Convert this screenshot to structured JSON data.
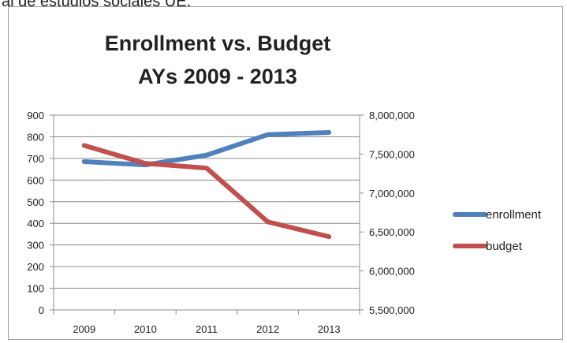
{
  "header": {
    "cutoff_caption": "al de estudios sociales UE."
  },
  "chart_data": {
    "type": "line",
    "title": [
      "Enrollment vs. Budget",
      "AYs 2009 - 2013"
    ],
    "categories": [
      "2009",
      "2010",
      "2011",
      "2012",
      "2013"
    ],
    "y_left": {
      "ylim": [
        0,
        900
      ],
      "ticks": [
        0,
        100,
        200,
        300,
        400,
        500,
        600,
        700,
        800,
        900
      ],
      "tick_labels": [
        "0",
        "100",
        "200",
        "300",
        "400",
        "500",
        "600",
        "700",
        "800",
        "900"
      ]
    },
    "y_right": {
      "ylim": [
        5500000,
        8000000
      ],
      "ticks": [
        5500000,
        6000000,
        6500000,
        7000000,
        7500000,
        8000000
      ],
      "tick_labels": [
        "5,500,000",
        "6,000,000",
        "6,500,000",
        "7,000,000",
        "7,500,000",
        "8,000,000"
      ]
    },
    "series": [
      {
        "name": "enrollment",
        "axis": "left",
        "color": "#4f81bd",
        "values": [
          685,
          670,
          715,
          810,
          820
        ]
      },
      {
        "name": "budget",
        "axis": "right",
        "color": "#c0504d",
        "values": [
          7610000,
          7380000,
          7320000,
          6630000,
          6440000
        ]
      }
    ],
    "grid": true,
    "legend_position": "right"
  }
}
